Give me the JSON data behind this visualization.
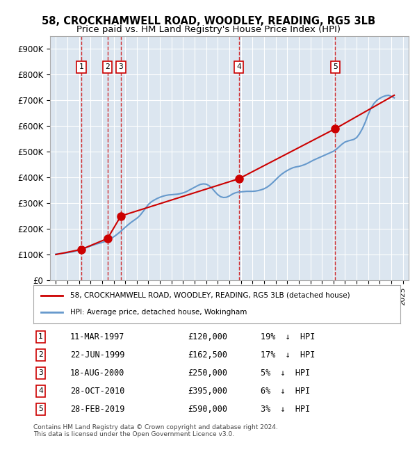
{
  "title": "58, CROCKHAMWELL ROAD, WOODLEY, READING, RG5 3LB",
  "subtitle": "Price paid vs. HM Land Registry's House Price Index (HPI)",
  "title_fontsize": 11,
  "subtitle_fontsize": 10,
  "background_color": "#dce6f0",
  "plot_bg_color": "#dce6f0",
  "transactions": [
    {
      "num": 1,
      "date_str": "11-MAR-1997",
      "year": 1997.2,
      "price": 120000,
      "pct": "19%"
    },
    {
      "num": 2,
      "date_str": "22-JUN-1999",
      "year": 1999.47,
      "price": 162500,
      "pct": "17%"
    },
    {
      "num": 3,
      "date_str": "18-AUG-2000",
      "year": 2000.62,
      "price": 250000,
      "pct": "5%"
    },
    {
      "num": 4,
      "date_str": "28-OCT-2010",
      "year": 2010.82,
      "price": 395000,
      "pct": "6%"
    },
    {
      "num": 5,
      "date_str": "28-FEB-2019",
      "year": 2019.16,
      "price": 590000,
      "pct": "3%"
    }
  ],
  "hpi_years": [
    1995.0,
    1995.25,
    1995.5,
    1995.75,
    1996.0,
    1996.25,
    1996.5,
    1996.75,
    1997.0,
    1997.25,
    1997.5,
    1997.75,
    1998.0,
    1998.25,
    1998.5,
    1998.75,
    1999.0,
    1999.25,
    1999.5,
    1999.75,
    2000.0,
    2000.25,
    2000.5,
    2000.75,
    2001.0,
    2001.25,
    2001.5,
    2001.75,
    2002.0,
    2002.25,
    2002.5,
    2002.75,
    2003.0,
    2003.25,
    2003.5,
    2003.75,
    2004.0,
    2004.25,
    2004.5,
    2004.75,
    2005.0,
    2005.25,
    2005.5,
    2005.75,
    2006.0,
    2006.25,
    2006.5,
    2006.75,
    2007.0,
    2007.25,
    2007.5,
    2007.75,
    2008.0,
    2008.25,
    2008.5,
    2008.75,
    2009.0,
    2009.25,
    2009.5,
    2009.75,
    2010.0,
    2010.25,
    2010.5,
    2010.75,
    2011.0,
    2011.25,
    2011.5,
    2011.75,
    2012.0,
    2012.25,
    2012.5,
    2012.75,
    2013.0,
    2013.25,
    2013.5,
    2013.75,
    2014.0,
    2014.25,
    2014.5,
    2014.75,
    2015.0,
    2015.25,
    2015.5,
    2015.75,
    2016.0,
    2016.25,
    2016.5,
    2016.75,
    2017.0,
    2017.25,
    2017.5,
    2017.75,
    2018.0,
    2018.25,
    2018.5,
    2018.75,
    2019.0,
    2019.25,
    2019.5,
    2019.75,
    2020.0,
    2020.25,
    2020.5,
    2020.75,
    2021.0,
    2021.25,
    2021.5,
    2021.75,
    2022.0,
    2022.25,
    2022.5,
    2022.75,
    2023.0,
    2023.25,
    2023.5,
    2023.75,
    2024.0,
    2024.25
  ],
  "hpi_values": [
    102000,
    103000,
    104000,
    105000,
    107000,
    109000,
    111000,
    114000,
    117000,
    121000,
    125000,
    129000,
    133000,
    137000,
    141000,
    144000,
    147000,
    151000,
    156000,
    162000,
    169000,
    177000,
    186000,
    196000,
    206000,
    216000,
    225000,
    233000,
    241000,
    251000,
    265000,
    280000,
    295000,
    305000,
    312000,
    318000,
    323000,
    327000,
    330000,
    332000,
    333000,
    334000,
    335000,
    337000,
    340000,
    344000,
    350000,
    356000,
    362000,
    368000,
    373000,
    375000,
    374000,
    368000,
    358000,
    345000,
    333000,
    325000,
    322000,
    323000,
    328000,
    335000,
    340000,
    343000,
    344000,
    345000,
    346000,
    346000,
    346000,
    347000,
    349000,
    352000,
    356000,
    362000,
    370000,
    380000,
    391000,
    402000,
    412000,
    420000,
    427000,
    433000,
    438000,
    441000,
    443000,
    446000,
    450000,
    455000,
    461000,
    467000,
    472000,
    477000,
    482000,
    487000,
    492000,
    497000,
    502000,
    510000,
    520000,
    530000,
    538000,
    542000,
    545000,
    548000,
    555000,
    570000,
    590000,
    615000,
    645000,
    670000,
    688000,
    700000,
    708000,
    714000,
    718000,
    720000,
    716000,
    710000
  ],
  "price_line_years": [
    1995.0,
    1997.2,
    1999.47,
    2000.62,
    2010.82,
    2019.16,
    2024.25
  ],
  "price_line_values": [
    100000,
    120000,
    162500,
    250000,
    395000,
    590000,
    720000
  ],
  "xlim": [
    1994.5,
    2025.5
  ],
  "ylim": [
    0,
    950000
  ],
  "yticks": [
    0,
    100000,
    200000,
    300000,
    400000,
    500000,
    600000,
    700000,
    800000,
    900000
  ],
  "ytick_labels": [
    "£0",
    "£100K",
    "£200K",
    "£300K",
    "£400K",
    "£500K",
    "£600K",
    "£700K",
    "£800K",
    "£900K"
  ],
  "xtick_years": [
    1995,
    1996,
    1997,
    1998,
    1999,
    2000,
    2001,
    2002,
    2003,
    2004,
    2005,
    2006,
    2007,
    2008,
    2009,
    2010,
    2011,
    2012,
    2013,
    2014,
    2015,
    2016,
    2017,
    2018,
    2019,
    2020,
    2021,
    2022,
    2023,
    2024,
    2025
  ],
  "red_line_color": "#cc0000",
  "blue_line_color": "#6699cc",
  "dot_color": "#cc0000",
  "vline_color": "#cc0000",
  "legend_label_red": "58, CROCKHAMWELL ROAD, WOODLEY, READING, RG5 3LB (detached house)",
  "legend_label_blue": "HPI: Average price, detached house, Wokingham",
  "footer": "Contains HM Land Registry data © Crown copyright and database right 2024.\nThis data is licensed under the Open Government Licence v3.0."
}
